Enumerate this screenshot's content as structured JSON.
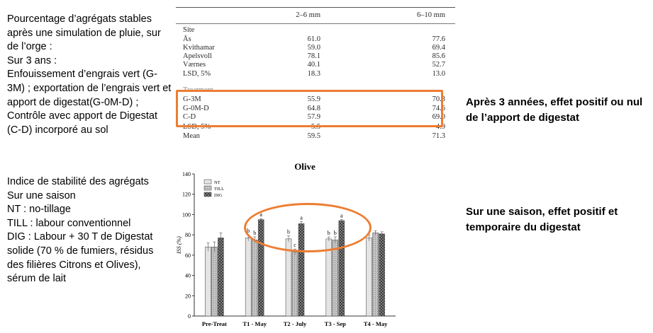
{
  "left_top_text": "Pourcentage d’agrégats stables après une simulation de pluie, sur de l’orge :\nSur 3 ans :\nEnfouissement d’engrais vert (G-3M) ; exportation de l’engrais vert et apport de digestat(G-0M-D) ; Contrôle avec apport de Digestat (C-D) incorporé au sol",
  "left_bottom_text": "Indice de stabilité des agrégats\nSur une saison\nNT : no-tillage\nTILL : labour conventionnel\nDIG : Labour + 30 T de Digestat solide (70 % de fumiers, résidus des filières Citrons et Olives), sérum de lait",
  "right_top_text": "Après 3 années, effet positif ou nul de l’apport de digestat",
  "right_bottom_text": "Sur une saison, effet positif et temporaire du digestat",
  "table": {
    "headers": [
      "",
      "2–6 mm",
      "6–10 mm"
    ],
    "rows": [
      [
        "Site",
        "",
        ""
      ],
      [
        "Ås",
        "61.0",
        "77.6"
      ],
      [
        "Kvithamar",
        "59.0",
        "69.4"
      ],
      [
        "Apelsvoll",
        "78.1",
        "85.6"
      ],
      [
        "Værnes",
        "40.1",
        "52.7"
      ],
      [
        "LSD, 5%",
        "18.3",
        "13.0"
      ],
      [
        "Treatment",
        "",
        ""
      ],
      [
        "G-3M",
        "55.9",
        "70.3"
      ],
      [
        "G-0M-D",
        "64.8",
        "74.6"
      ],
      [
        "C-D",
        "57.9",
        "69.0"
      ],
      [
        "LSD, 5%",
        "5.5",
        "4.9"
      ],
      [
        "Mean",
        "59.5",
        "71.3"
      ]
    ]
  },
  "chart_data": {
    "type": "bar",
    "title": "Olive",
    "ylabel": "ISS (%)",
    "xlabel": "",
    "ylim": [
      0,
      140
    ],
    "yticks": [
      "0",
      "20",
      "40",
      "60",
      "80",
      "100",
      "120",
      "140"
    ],
    "legend_position": "top-left",
    "categories": [
      "Pre-Treat",
      "T1 - May",
      "T2 - July",
      "T3 - Sep",
      "T4 - May"
    ],
    "series": [
      {
        "name": "NT",
        "values": [
          68,
          77,
          76,
          76,
          77
        ],
        "errors": [
          4,
          3,
          3,
          2,
          3
        ],
        "letters": [
          "",
          "b",
          "b",
          "b",
          ""
        ],
        "color": "#e6e6e6"
      },
      {
        "name": "TILL",
        "values": [
          68,
          75,
          63,
          75,
          82
        ],
        "errors": [
          5,
          3,
          3,
          3,
          2
        ],
        "letters": [
          "",
          "b",
          "c",
          "b",
          ""
        ],
        "color": "#b3b3b3"
      },
      {
        "name": "DIG",
        "values": [
          77,
          95,
          91,
          94,
          81
        ],
        "errors": [
          5,
          1,
          2,
          1,
          2
        ],
        "letters": [
          "",
          "a",
          "a",
          "a",
          ""
        ],
        "color": "#3a3a3a"
      }
    ]
  },
  "colors": {
    "highlight": "#ed7d31"
  }
}
